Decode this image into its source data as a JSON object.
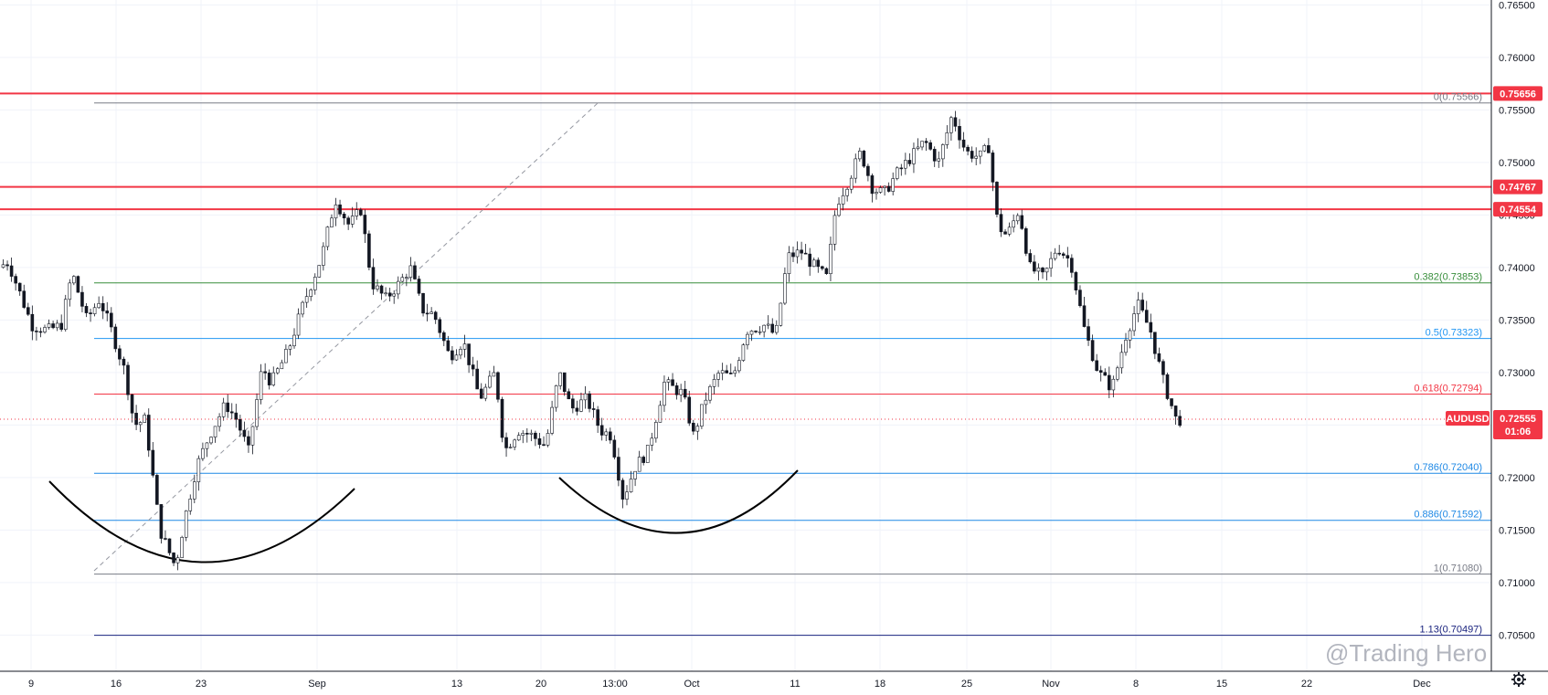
{
  "chart_data": {
    "type": "candlestick",
    "symbol": "AUDUSD",
    "last_price": 0.72555,
    "countdown": "01:06",
    "ylim": [
      0.7003,
      0.7656
    ],
    "y_ticks": [
      "0.76500",
      "0.76000",
      "0.75500",
      "0.75000",
      "0.74500",
      "0.74000",
      "0.73500",
      "0.73000",
      "0.72500",
      "0.72000",
      "0.71500",
      "0.71000",
      "0.70500"
    ],
    "x_ticks": [
      "9",
      "16",
      "23",
      "Sep",
      "13",
      "20",
      "13:00",
      "Oct",
      "11",
      "18",
      "25",
      "Nov",
      "8",
      "15",
      "22",
      "Dec"
    ],
    "horizontal_levels": [
      {
        "value": 0.75656,
        "label": "0.75656"
      },
      {
        "value": 0.74767,
        "label": "0.74767"
      },
      {
        "value": 0.74554,
        "label": "0.74554"
      }
    ],
    "fibonacci": [
      {
        "ratio": "0",
        "value": 0.75566,
        "color": "#787b86",
        "text": "0(0.75566)"
      },
      {
        "ratio": "0.382",
        "value": 0.73853,
        "color": "#388e3c",
        "text": "0.382(0.73853)"
      },
      {
        "ratio": "0.5",
        "value": 0.73323,
        "color": "#2196f3",
        "text": "0.5(0.73323)"
      },
      {
        "ratio": "0.618",
        "value": 0.72794,
        "color": "#f23645",
        "text": "0.618(0.72794)"
      },
      {
        "ratio": "0.786",
        "value": 0.7204,
        "color": "#1e88e5",
        "text": "0.786(0.72040)"
      },
      {
        "ratio": "0.886",
        "value": 0.71592,
        "color": "#1e88e5",
        "text": "0.886(0.71592)"
      },
      {
        "ratio": "1",
        "value": 0.7108,
        "color": "#787b86",
        "text": "1(0.71080)"
      },
      {
        "ratio": "1.13",
        "value": 0.70497,
        "color": "#1a237e",
        "text": "1.13(0.70497)"
      }
    ],
    "price_path": [
      [
        0,
        0.74
      ],
      [
        12,
        0.7405
      ],
      [
        25,
        0.7375
      ],
      [
        38,
        0.7345
      ],
      [
        55,
        0.734
      ],
      [
        70,
        0.7345
      ],
      [
        82,
        0.7395
      ],
      [
        98,
        0.735
      ],
      [
        112,
        0.737
      ],
      [
        125,
        0.734
      ],
      [
        140,
        0.73
      ],
      [
        150,
        0.725
      ],
      [
        162,
        0.7255
      ],
      [
        178,
        0.715
      ],
      [
        195,
        0.7115
      ],
      [
        205,
        0.716
      ],
      [
        218,
        0.721
      ],
      [
        232,
        0.724
      ],
      [
        250,
        0.727
      ],
      [
        262,
        0.7255
      ],
      [
        275,
        0.7225
      ],
      [
        290,
        0.7305
      ],
      [
        300,
        0.729
      ],
      [
        318,
        0.732
      ],
      [
        335,
        0.7365
      ],
      [
        355,
        0.741
      ],
      [
        370,
        0.7465
      ],
      [
        385,
        0.744
      ],
      [
        398,
        0.7455
      ],
      [
        410,
        0.7385
      ],
      [
        425,
        0.737
      ],
      [
        440,
        0.7385
      ],
      [
        452,
        0.74
      ],
      [
        465,
        0.736
      ],
      [
        478,
        0.7355
      ],
      [
        495,
        0.7315
      ],
      [
        510,
        0.733
      ],
      [
        528,
        0.7275
      ],
      [
        545,
        0.73
      ],
      [
        555,
        0.7225
      ],
      [
        570,
        0.7245
      ],
      [
        585,
        0.724
      ],
      [
        600,
        0.723
      ],
      [
        615,
        0.73
      ],
      [
        628,
        0.7265
      ],
      [
        645,
        0.7275
      ],
      [
        660,
        0.7245
      ],
      [
        672,
        0.724
      ],
      [
        685,
        0.718
      ],
      [
        698,
        0.721
      ],
      [
        712,
        0.7225
      ],
      [
        730,
        0.729
      ],
      [
        750,
        0.728
      ],
      [
        762,
        0.724
      ],
      [
        775,
        0.7275
      ],
      [
        790,
        0.73
      ],
      [
        805,
        0.7295
      ],
      [
        820,
        0.734
      ],
      [
        840,
        0.7345
      ],
      [
        852,
        0.7335
      ],
      [
        865,
        0.741
      ],
      [
        880,
        0.7415
      ],
      [
        895,
        0.74
      ],
      [
        908,
        0.739
      ],
      [
        918,
        0.746
      ],
      [
        930,
        0.748
      ],
      [
        945,
        0.751
      ],
      [
        958,
        0.7475
      ],
      [
        970,
        0.747
      ],
      [
        985,
        0.749
      ],
      [
        1000,
        0.7505
      ],
      [
        1015,
        0.752
      ],
      [
        1030,
        0.75
      ],
      [
        1045,
        0.7545
      ],
      [
        1060,
        0.751
      ],
      [
        1075,
        0.7505
      ],
      [
        1085,
        0.7515
      ],
      [
        1095,
        0.744
      ],
      [
        1105,
        0.743
      ],
      [
        1118,
        0.7455
      ],
      [
        1130,
        0.74
      ],
      [
        1145,
        0.739
      ],
      [
        1160,
        0.742
      ],
      [
        1175,
        0.7405
      ],
      [
        1190,
        0.734
      ],
      [
        1205,
        0.73
      ],
      [
        1220,
        0.7285
      ],
      [
        1235,
        0.7335
      ],
      [
        1248,
        0.7365
      ],
      [
        1262,
        0.734
      ],
      [
        1275,
        0.7295
      ],
      [
        1290,
        0.7255
      ]
    ]
  },
  "watermark": "@Trading Hero"
}
